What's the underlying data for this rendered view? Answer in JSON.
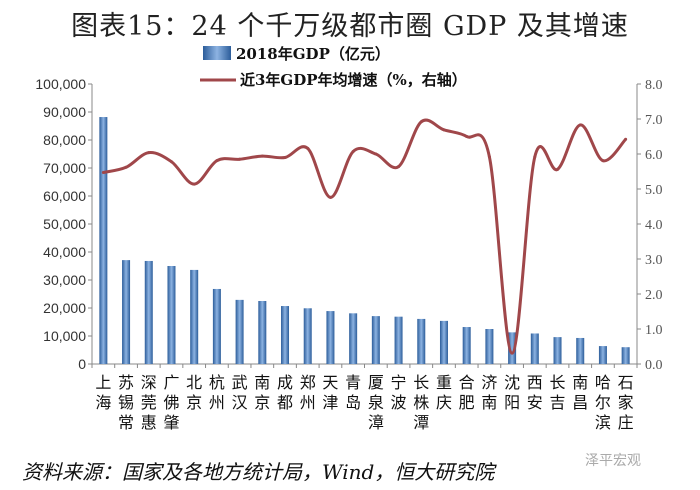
{
  "title": "图表15：24 个千万级都市圈 GDP 及其增速",
  "source": "资料来源：国家及各地方统计局，Wind，恒大研究院",
  "watermark": "泽平宏观",
  "chart_data": {
    "type": "bar+line",
    "categories": [
      "上海",
      "苏锡常",
      "深莞惠",
      "广佛肇",
      "北京",
      "杭州",
      "武汉",
      "南京",
      "成都",
      "郑州",
      "天津",
      "青岛",
      "厦泉漳",
      "宁波",
      "长株潭",
      "重庆",
      "合肥",
      "济南",
      "沈阳",
      "西安",
      "长吉",
      "南昌",
      "哈尔滨",
      "石家庄"
    ],
    "series": [
      {
        "name": "2018年GDP（亿元）",
        "type": "bar",
        "axis": "left",
        "color": "#4f81bd",
        "values": [
          88200,
          37100,
          36800,
          35000,
          33600,
          26800,
          22900,
          22500,
          20700,
          19900,
          18900,
          18100,
          17100,
          16900,
          16100,
          15400,
          13200,
          12500,
          11300,
          10900,
          9600,
          9300,
          6400,
          6000
        ]
      },
      {
        "name": "近3年GDP年均增速（%，右轴）",
        "type": "line",
        "axis": "right",
        "color": "#a0474a",
        "values": [
          5.47,
          5.62,
          6.04,
          5.78,
          5.14,
          5.81,
          5.85,
          5.94,
          5.9,
          6.16,
          4.76,
          6.07,
          6.0,
          5.64,
          6.92,
          6.69,
          6.5,
          5.92,
          0.31,
          5.92,
          5.56,
          6.83,
          5.81,
          6.42
        ]
      }
    ],
    "y_left": {
      "range": [
        0,
        100000
      ],
      "ticks": [
        "0",
        "10,000",
        "20,000",
        "30,000",
        "40,000",
        "50,000",
        "60,000",
        "70,000",
        "80,000",
        "90,000",
        "100,000"
      ]
    },
    "y_right": {
      "range": [
        0,
        8
      ],
      "ticks": [
        "0.0",
        "1.0",
        "2.0",
        "3.0",
        "4.0",
        "5.0",
        "6.0",
        "7.0",
        "8.0"
      ]
    },
    "grid": false,
    "legend": "top"
  }
}
